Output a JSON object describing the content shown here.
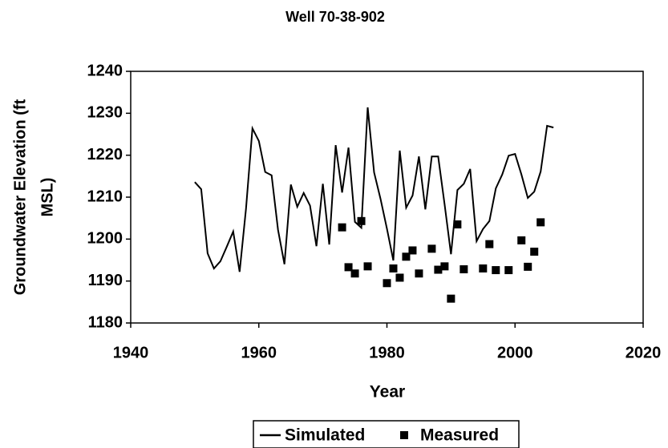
{
  "chart_data": {
    "type": "line",
    "title": "Well 70-38-902",
    "xlabel": "Year",
    "ylabel": [
      "Groundwater Elevation (ft",
      "MSL)"
    ],
    "xlim": [
      1940,
      2020
    ],
    "xticks": [
      1940,
      1960,
      1980,
      2000,
      2020
    ],
    "ylim": [
      1180,
      1240
    ],
    "yticks": [
      1180,
      1190,
      1200,
      1210,
      1220,
      1230,
      1240
    ],
    "grid": false,
    "legend": "bottom",
    "series": [
      {
        "name": "Simulated",
        "color": "#000000",
        "mode": "line",
        "x": [
          1950,
          1951,
          1952,
          1953,
          1954,
          1955,
          1956,
          1957,
          1958,
          1959,
          1960,
          1961,
          1962,
          1963,
          1964,
          1965,
          1966,
          1967,
          1968,
          1969,
          1970,
          1971,
          1972,
          1973,
          1974,
          1975,
          1976,
          1977,
          1978,
          1979,
          1980,
          1981,
          1982,
          1983,
          1984,
          1985,
          1986,
          1987,
          1988,
          1989,
          1990,
          1991,
          1992,
          1993,
          1994,
          1995,
          1996,
          1997,
          1998,
          1999,
          2000,
          2001,
          2002,
          2003,
          2004,
          2005,
          2006
        ],
        "values": [
          1213.6,
          1211.9,
          1196.6,
          1193,
          1194.7,
          1198.2,
          1201.8,
          1192.2,
          1207.3,
          1226.4,
          1223.4,
          1216,
          1215.2,
          1202.2,
          1194,
          1213,
          1207.7,
          1211,
          1208,
          1198.3,
          1213.2,
          1198.7,
          1222.4,
          1211.1,
          1221.8,
          1204.1,
          1202.7,
          1231.4,
          1215.9,
          1209.6,
          1202.5,
          1194.9,
          1221.1,
          1207.5,
          1210.4,
          1219.7,
          1207.1,
          1219.7,
          1219.7,
          1208.3,
          1196.4,
          1211.7,
          1213.2,
          1216.7,
          1199.5,
          1202.4,
          1204.3,
          1212.1,
          1215.4,
          1219.9,
          1220.3,
          1215.4,
          1209.8,
          1211.3,
          1216.1,
          1227,
          1226.6
        ]
      },
      {
        "name": "Measured",
        "color": "#000000",
        "mode": "markers",
        "x": [
          1973,
          1974,
          1975,
          1976,
          1977,
          1980,
          1981,
          1982,
          1983,
          1984,
          1985,
          1987,
          1988,
          1989,
          1990,
          1991,
          1992,
          1995,
          1996,
          1997,
          1999,
          2001,
          2002,
          2003,
          2004
        ],
        "values": [
          1202.8,
          1193.3,
          1191.8,
          1204.3,
          1193.5,
          1189.5,
          1193,
          1190.8,
          1195.8,
          1197.3,
          1191.8,
          1197.7,
          1192.7,
          1193.5,
          1185.8,
          1203.5,
          1192.8,
          1193,
          1198.8,
          1192.6,
          1192.6,
          1199.7,
          1193.4,
          1197,
          1204
        ]
      }
    ]
  }
}
